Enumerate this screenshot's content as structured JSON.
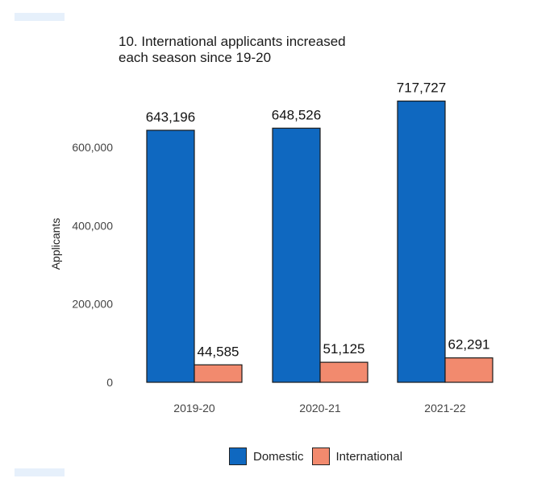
{
  "chart_data": {
    "type": "bar",
    "title_lines": [
      "10. International applicants increased",
      "each season since 19-20"
    ],
    "ylabel": "Applicants",
    "xlabel": "",
    "categories": [
      "2019-20",
      "2020-21",
      "2021-22"
    ],
    "series": [
      {
        "name": "Domestic",
        "color": "#0f68c0",
        "values": [
          643196,
          648526,
          717727
        ],
        "labels": [
          "643,196",
          "648,526",
          "717,727"
        ]
      },
      {
        "name": "International",
        "color": "#f28a6e",
        "values": [
          44585,
          51125,
          62291
        ],
        "labels": [
          "44,585",
          "51,125",
          "62,291"
        ]
      }
    ],
    "yticks": [
      0,
      200000,
      400000,
      600000
    ],
    "ytick_labels": [
      "0",
      "200,000",
      "400,000",
      "600,000"
    ],
    "ylim": [
      0,
      760000
    ],
    "grid": false,
    "legend_position": "bottom"
  }
}
